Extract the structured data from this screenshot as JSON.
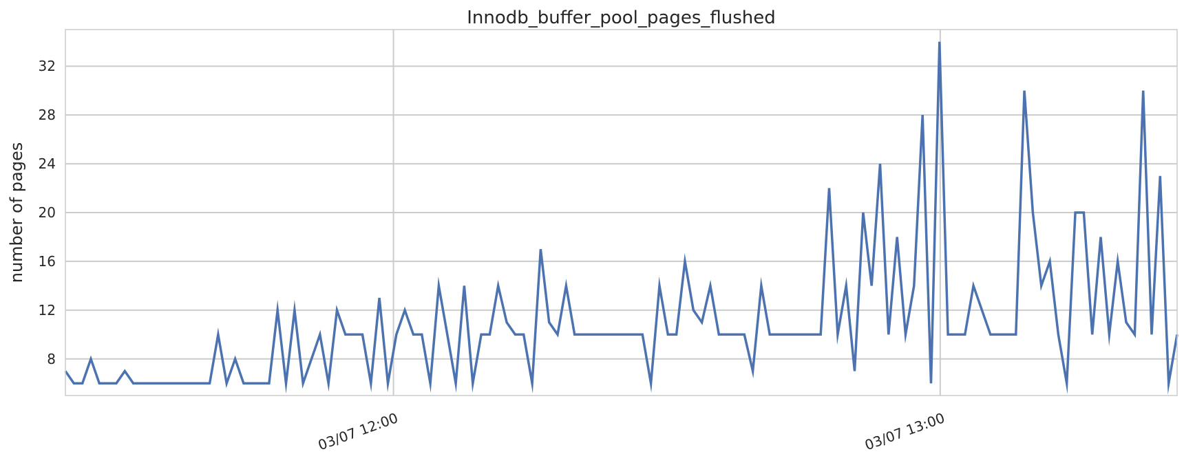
{
  "chart_data": {
    "type": "line",
    "title": "Innodb_buffer_pool_pages_flushed",
    "xlabel": "",
    "ylabel": "number of pages",
    "x_start": "03/07 11:24",
    "x_end": "03/07 13:26",
    "x_tick_labels": [
      {
        "time": "03/07 12:00",
        "label": "03/07 12:00"
      },
      {
        "time": "03/07 13:00",
        "label": "03/07 13:00"
      }
    ],
    "y_ticks": [
      8,
      12,
      16,
      20,
      24,
      28,
      32
    ],
    "ylim": [
      5,
      35
    ],
    "grid": true,
    "line_color": "#4c72b0",
    "grid_color": "#cccccc",
    "series": [
      {
        "values": [
          7,
          6,
          6,
          8,
          6,
          6,
          6,
          7,
          6,
          6,
          6,
          6,
          6,
          6,
          6,
          6,
          6,
          6,
          10,
          6,
          8,
          6,
          6,
          6,
          6,
          12,
          6,
          12,
          6,
          8,
          10,
          6,
          12,
          10,
          10,
          10,
          6,
          13,
          6,
          10,
          12,
          10,
          10,
          6,
          14,
          10,
          6,
          14,
          6,
          10,
          10,
          14,
          11,
          10,
          10,
          6,
          17,
          11,
          10,
          14,
          10,
          10,
          10,
          10,
          10,
          10,
          10,
          10,
          10,
          6,
          14,
          10,
          10,
          16,
          12,
          11,
          14,
          10,
          10,
          10,
          10,
          7,
          14,
          10,
          10,
          10,
          10,
          10,
          10,
          10,
          22,
          10,
          14,
          7,
          20,
          14,
          24,
          10,
          18,
          10,
          14,
          28,
          6,
          34,
          10,
          10,
          10,
          14,
          12,
          10,
          10,
          10,
          10,
          30,
          20,
          14,
          16,
          10,
          6,
          20,
          20,
          10,
          18,
          10,
          16,
          11,
          10,
          30,
          10,
          23,
          6,
          10
        ]
      }
    ]
  }
}
